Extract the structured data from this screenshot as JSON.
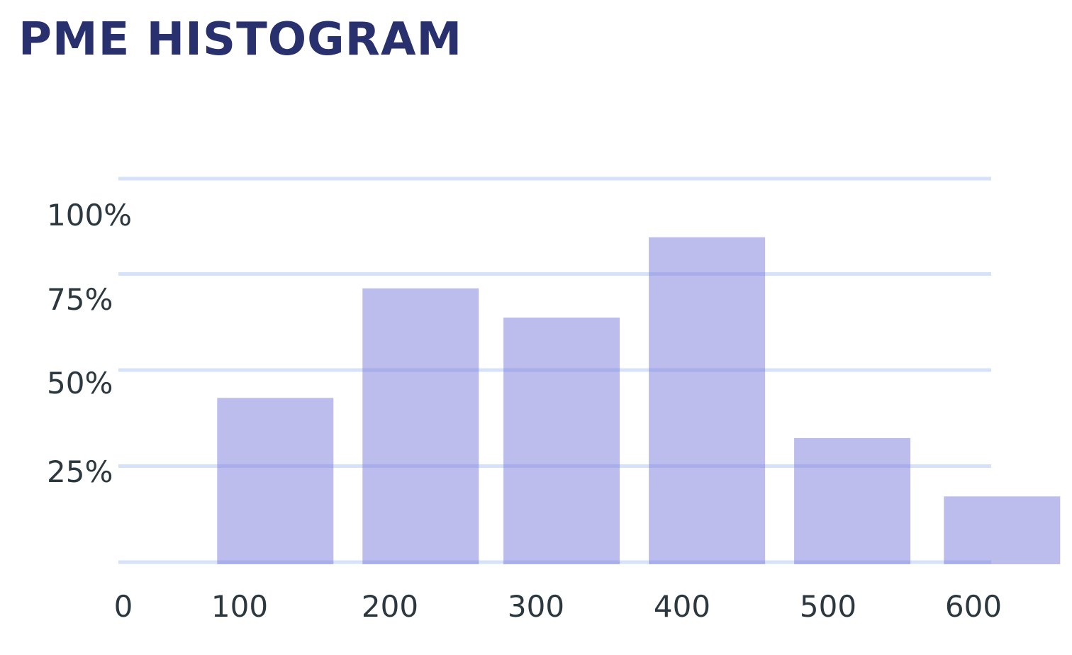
{
  "colors": {
    "title": "#28306e",
    "bar": "#7f7fdc",
    "grid": "#d6e2fa",
    "tick_text": "#2c3840"
  },
  "chart_data": {
    "type": "bar",
    "title": "PME HISTOGRAM",
    "xlabel": "",
    "ylabel": "",
    "x_ticks": [
      0,
      100,
      200,
      300,
      400,
      500,
      600
    ],
    "x_tick_labels": [
      "0",
      "100",
      "200",
      "300",
      "400",
      "500",
      "600"
    ],
    "y_tick_labels": [
      "25%",
      "50%",
      "75%",
      "100%"
    ],
    "y_ticks": [
      25,
      50,
      75,
      100
    ],
    "bar_centers": [
      105,
      205,
      302,
      402,
      502,
      605
    ],
    "values": [
      45,
      75,
      67,
      89,
      34,
      18
    ],
    "bar_width": 80,
    "xlim": [
      0,
      630
    ],
    "ylim": [
      0,
      100
    ],
    "grid": true
  }
}
